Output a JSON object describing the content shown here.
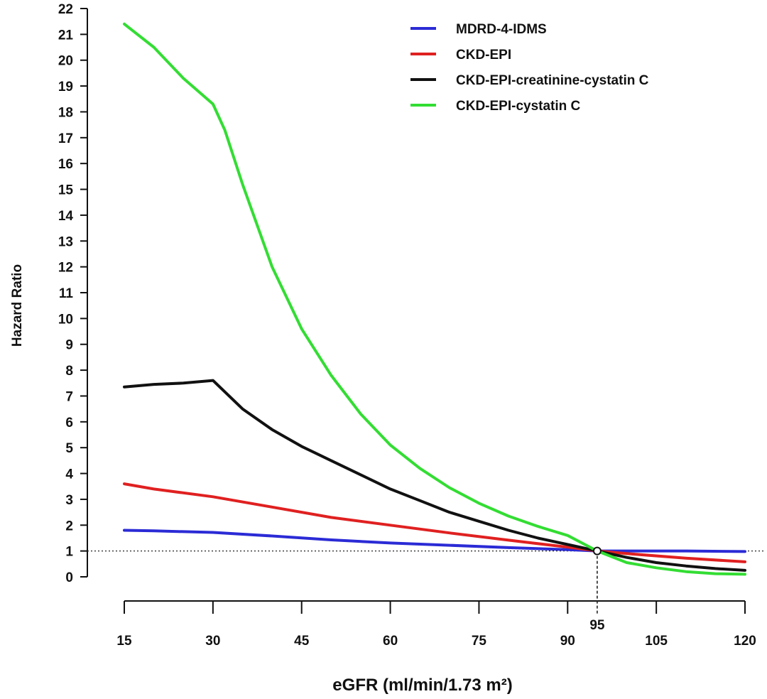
{
  "chart_data": {
    "type": "line",
    "xlabel": "eGFR (ml/min/1.73 m²)",
    "ylabel": "Hazard Ratio",
    "xlim": [
      15,
      120
    ],
    "ylim": [
      0,
      22
    ],
    "x_ticks": [
      "15",
      "30",
      "45",
      "60",
      "75",
      "90",
      "105",
      "120"
    ],
    "y_ticks": [
      "0",
      "1",
      "2",
      "3",
      "4",
      "5",
      "6",
      "7",
      "8",
      "9",
      "10",
      "11",
      "12",
      "13",
      "14",
      "15",
      "16",
      "17",
      "18",
      "19",
      "20",
      "21",
      "22"
    ],
    "reference_line": {
      "y": 1
    },
    "reference_point": {
      "x": 95,
      "y": 1,
      "label": "95"
    },
    "legend_position": "top-right",
    "grid": false,
    "series": [
      {
        "name": "MDRD-4-IDMS",
        "color": "#2b2bd6",
        "points": [
          [
            15,
            1.8
          ],
          [
            20,
            1.78
          ],
          [
            30,
            1.72
          ],
          [
            40,
            1.58
          ],
          [
            50,
            1.43
          ],
          [
            60,
            1.31
          ],
          [
            70,
            1.22
          ],
          [
            80,
            1.13
          ],
          [
            90,
            1.05
          ],
          [
            95,
            1.0
          ],
          [
            100,
            1.0
          ],
          [
            110,
            1.0
          ],
          [
            120,
            0.98
          ]
        ]
      },
      {
        "name": "CKD-EPI",
        "color": "#e02020",
        "points": [
          [
            15,
            3.6
          ],
          [
            20,
            3.4
          ],
          [
            30,
            3.1
          ],
          [
            40,
            2.7
          ],
          [
            50,
            2.3
          ],
          [
            60,
            2.0
          ],
          [
            70,
            1.7
          ],
          [
            80,
            1.42
          ],
          [
            90,
            1.15
          ],
          [
            95,
            1.0
          ],
          [
            100,
            0.9
          ],
          [
            110,
            0.72
          ],
          [
            120,
            0.58
          ]
        ]
      },
      {
        "name": "CKD-EPI-creatinine-cystatin C",
        "color": "#111111",
        "points": [
          [
            15,
            7.35
          ],
          [
            20,
            7.45
          ],
          [
            25,
            7.5
          ],
          [
            30,
            7.6
          ],
          [
            35,
            6.5
          ],
          [
            40,
            5.7
          ],
          [
            45,
            5.05
          ],
          [
            50,
            4.5
          ],
          [
            55,
            3.95
          ],
          [
            60,
            3.4
          ],
          [
            65,
            2.95
          ],
          [
            70,
            2.5
          ],
          [
            75,
            2.15
          ],
          [
            80,
            1.8
          ],
          [
            85,
            1.5
          ],
          [
            90,
            1.25
          ],
          [
            95,
            1.0
          ],
          [
            100,
            0.75
          ],
          [
            105,
            0.55
          ],
          [
            110,
            0.42
          ],
          [
            115,
            0.32
          ],
          [
            120,
            0.25
          ]
        ]
      },
      {
        "name": "CKD-EPI-cystatin C",
        "color": "#33dd33",
        "points": [
          [
            15,
            21.4
          ],
          [
            20,
            20.5
          ],
          [
            25,
            19.3
          ],
          [
            30,
            18.3
          ],
          [
            32,
            17.3
          ],
          [
            35,
            15.2
          ],
          [
            40,
            12.0
          ],
          [
            45,
            9.6
          ],
          [
            50,
            7.8
          ],
          [
            55,
            6.3
          ],
          [
            60,
            5.1
          ],
          [
            65,
            4.2
          ],
          [
            70,
            3.45
          ],
          [
            75,
            2.85
          ],
          [
            80,
            2.35
          ],
          [
            85,
            1.95
          ],
          [
            90,
            1.6
          ],
          [
            95,
            1.0
          ],
          [
            100,
            0.55
          ],
          [
            105,
            0.35
          ],
          [
            110,
            0.2
          ],
          [
            115,
            0.12
          ],
          [
            120,
            0.1
          ]
        ]
      }
    ]
  }
}
